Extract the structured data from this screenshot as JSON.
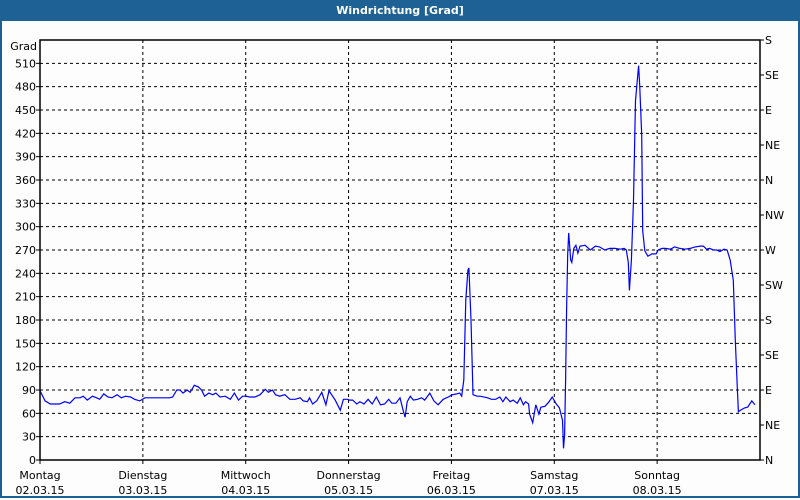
{
  "window": {
    "title": "Windrichtung [Grad]"
  },
  "chart_data": {
    "type": "line",
    "title": "Windrichtung [Grad]",
    "ylabel": "Grad",
    "ylim": [
      0,
      540
    ],
    "yticks": [
      0,
      30,
      60,
      90,
      120,
      150,
      180,
      210,
      240,
      270,
      300,
      330,
      360,
      390,
      420,
      450,
      480,
      510
    ],
    "right_axis_ticks": [
      {
        "value": 0,
        "label": "N"
      },
      {
        "value": 45,
        "label": "NE"
      },
      {
        "value": 90,
        "label": "E"
      },
      {
        "value": 135,
        "label": "SE"
      },
      {
        "value": 180,
        "label": "S"
      },
      {
        "value": 225,
        "label": "SW"
      },
      {
        "value": 270,
        "label": "W"
      },
      {
        "value": 315,
        "label": "NW"
      },
      {
        "value": 360,
        "label": "N"
      },
      {
        "value": 405,
        "label": "NE"
      },
      {
        "value": 450,
        "label": "E"
      },
      {
        "value": 495,
        "label": "SE"
      },
      {
        "value": 540,
        "label": "S"
      }
    ],
    "xlim": [
      "02.03.15",
      "09.03.15"
    ],
    "xticks": [
      {
        "day": "Montag",
        "date": "02.03.15"
      },
      {
        "day": "Dienstag",
        "date": "03.03.15"
      },
      {
        "day": "Mittwoch",
        "date": "04.03.15"
      },
      {
        "day": "Donnerstag",
        "date": "05.03.15"
      },
      {
        "day": "Freitag",
        "date": "06.03.15"
      },
      {
        "day": "Samstag",
        "date": "07.03.15"
      },
      {
        "day": "Sonntag",
        "date": "08.03.15"
      }
    ],
    "grid": true,
    "line_color": "#0000ff",
    "series": [
      {
        "x_days_from_start": [
          0,
          0.05,
          0.1,
          0.15,
          0.19,
          0.24,
          0.29,
          0.34,
          0.39,
          0.42,
          0.46,
          0.51,
          0.55,
          0.58,
          0.62,
          0.66,
          0.7,
          0.75,
          0.79,
          0.83,
          0.88,
          0.92,
          0.97,
          1.02,
          1.07,
          1.12,
          1.17,
          1.22,
          1.26,
          1.29,
          1.33,
          1.36,
          1.39,
          1.43,
          1.46,
          1.5,
          1.54,
          1.57,
          1.6,
          1.64,
          1.68,
          1.71,
          1.75,
          1.8,
          1.85,
          1.89,
          1.93,
          1.97,
          2.0,
          2.04,
          2.09,
          2.14,
          2.19,
          2.22,
          2.26,
          2.29,
          2.33,
          2.38,
          2.43,
          2.48,
          2.53,
          2.56,
          2.6,
          2.62,
          2.65,
          2.69,
          2.74,
          2.78,
          2.81,
          2.87,
          2.92,
          2.95,
          2.99,
          3.01,
          3.04,
          3.08,
          3.11,
          3.15,
          3.19,
          3.23,
          3.27,
          3.31,
          3.35,
          3.39,
          3.42,
          3.46,
          3.5,
          3.53,
          3.55,
          3.57,
          3.6,
          3.63,
          3.67,
          3.71,
          3.74,
          3.79,
          3.83,
          3.87,
          3.92,
          3.97,
          4.01,
          4.05,
          4.08,
          4.1,
          4.12,
          4.14,
          4.16,
          4.17,
          4.19,
          4.21,
          4.25,
          4.28,
          4.35,
          4.39,
          4.43,
          4.47,
          4.5,
          4.53,
          4.57,
          4.6,
          4.64,
          4.67,
          4.7,
          4.72,
          4.75,
          4.76,
          4.79,
          4.82,
          4.85,
          4.87,
          4.91,
          4.95,
          4.98,
          5.02,
          5.05,
          5.08,
          5.09,
          5.1,
          5.11,
          5.12,
          5.13,
          5.14,
          5.16,
          5.17,
          5.19,
          5.21,
          5.23,
          5.25,
          5.3,
          5.35,
          5.4,
          5.44,
          5.49,
          5.54,
          5.59,
          5.64,
          5.68,
          5.7,
          5.72,
          5.73,
          5.75,
          5.77,
          5.78,
          5.79,
          5.8,
          5.82,
          5.83,
          5.85,
          5.86,
          5.88,
          5.91,
          5.95,
          5.99,
          6.01,
          6.05,
          6.08,
          6.13,
          6.17,
          6.22,
          6.27,
          6.32,
          6.37,
          6.42,
          6.45,
          6.48,
          6.51,
          6.55,
          6.58,
          6.61,
          6.65,
          6.68,
          6.71,
          6.74,
          6.76,
          6.78,
          6.79,
          6.81,
          6.85,
          6.88,
          6.92,
          6.95
        ],
        "y": [
          89,
          76,
          72,
          72,
          72,
          75,
          73,
          80,
          80,
          82,
          77,
          82,
          80,
          78,
          85,
          81,
          80,
          84,
          80,
          82,
          81,
          78,
          76,
          80,
          80,
          80,
          80,
          80,
          80,
          81,
          90,
          90,
          86,
          90,
          87,
          96,
          94,
          90,
          82,
          86,
          84,
          86,
          81,
          82,
          78,
          86,
          77,
          82,
          82,
          81,
          81,
          84,
          91,
          87,
          90,
          84,
          82,
          84,
          78,
          78,
          80,
          76,
          75,
          80,
          72,
          76,
          87,
          71,
          89,
          77,
          64,
          78,
          78,
          77,
          77,
          72,
          75,
          72,
          78,
          72,
          81,
          71,
          72,
          78,
          73,
          73,
          80,
          64,
          55,
          75,
          82,
          77,
          78,
          80,
          77,
          86,
          76,
          71,
          78,
          81,
          84,
          85,
          86,
          82,
          103,
          206,
          244,
          247,
          180,
          84,
          82,
          82,
          80,
          78,
          78,
          81,
          75,
          81,
          75,
          77,
          73,
          80,
          71,
          75,
          72,
          59,
          48,
          71,
          59,
          68,
          69,
          75,
          81,
          72,
          67,
          51,
          15,
          32,
          103,
          194,
          265,
          292,
          257,
          254,
          272,
          276,
          266,
          275,
          276,
          270,
          275,
          274,
          270,
          272,
          272,
          271,
          272,
          270,
          254,
          218,
          257,
          334,
          398,
          462,
          478,
          507,
          482,
          418,
          295,
          269,
          262,
          265,
          265,
          270,
          272,
          272,
          271,
          274,
          272,
          271,
          272,
          274,
          275,
          275,
          271,
          272,
          270,
          270,
          268,
          271,
          270,
          257,
          231,
          154,
          90,
          62,
          64,
          67,
          68,
          76,
          71
        ]
      }
    ]
  }
}
